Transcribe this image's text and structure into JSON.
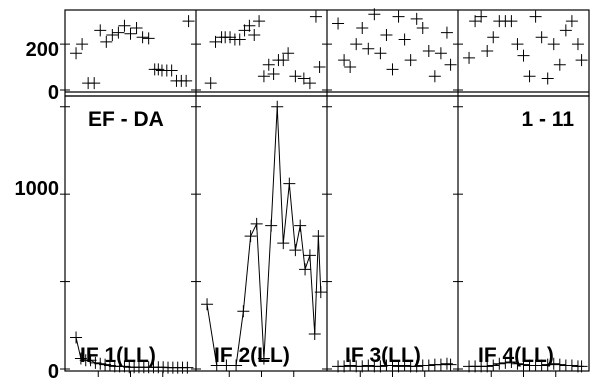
{
  "chart_data": {
    "type": "scatter",
    "labels": {
      "left_corner": "EF - DA",
      "right_corner": "1 - 11"
    },
    "top_strip": {
      "y_ticks": [
        {
          "value": 0,
          "label": "0"
        },
        {
          "value": 200,
          "label": "200"
        }
      ],
      "ylim": [
        0,
        340
      ],
      "panels": [
        {
          "id": "top-1",
          "points": [
            [
              0.05,
              160
            ],
            [
              0.1,
              200
            ],
            [
              0.15,
              30
            ],
            [
              0.2,
              30
            ],
            [
              0.25,
              260
            ],
            [
              0.3,
              210
            ],
            [
              0.35,
              240
            ],
            [
              0.4,
              250
            ],
            [
              0.45,
              280
            ],
            [
              0.5,
              245
            ],
            [
              0.55,
              270
            ],
            [
              0.6,
              230
            ],
            [
              0.65,
              225
            ],
            [
              0.7,
              90
            ],
            [
              0.73,
              90
            ],
            [
              0.76,
              85
            ],
            [
              0.8,
              85
            ],
            [
              0.84,
              85
            ],
            [
              0.88,
              40
            ],
            [
              0.92,
              40
            ],
            [
              0.96,
              40
            ],
            [
              0.98,
              300
            ]
          ]
        },
        {
          "id": "top-2",
          "points": [
            [
              0.08,
              30
            ],
            [
              0.12,
              210
            ],
            [
              0.17,
              230
            ],
            [
              0.2,
              230
            ],
            [
              0.24,
              230
            ],
            [
              0.28,
              220
            ],
            [
              0.32,
              220
            ],
            [
              0.36,
              260
            ],
            [
              0.4,
              280
            ],
            [
              0.44,
              240
            ],
            [
              0.48,
              300
            ],
            [
              0.52,
              60
            ],
            [
              0.56,
              110
            ],
            [
              0.6,
              70
            ],
            [
              0.64,
              130
            ],
            [
              0.68,
              130
            ],
            [
              0.72,
              160
            ],
            [
              0.78,
              60
            ],
            [
              0.85,
              50
            ],
            [
              0.9,
              30
            ],
            [
              0.95,
              320
            ],
            [
              0.98,
              100
            ]
          ]
        },
        {
          "id": "top-3",
          "points": [
            [
              0.05,
              290
            ],
            [
              0.1,
              130
            ],
            [
              0.15,
              100
            ],
            [
              0.2,
              200
            ],
            [
              0.25,
              270
            ],
            [
              0.3,
              180
            ],
            [
              0.35,
              330
            ],
            [
              0.4,
              160
            ],
            [
              0.45,
              240
            ],
            [
              0.5,
              90
            ],
            [
              0.55,
              320
            ],
            [
              0.6,
              220
            ],
            [
              0.65,
              130
            ],
            [
              0.7,
              310
            ],
            [
              0.75,
              270
            ],
            [
              0.8,
              170
            ],
            [
              0.85,
              60
            ],
            [
              0.9,
              160
            ],
            [
              0.95,
              250
            ],
            [
              0.98,
              110
            ]
          ]
        },
        {
          "id": "top-4",
          "points": [
            [
              0.05,
              140
            ],
            [
              0.1,
              300
            ],
            [
              0.15,
              320
            ],
            [
              0.2,
              170
            ],
            [
              0.25,
              230
            ],
            [
              0.3,
              300
            ],
            [
              0.35,
              300
            ],
            [
              0.4,
              300
            ],
            [
              0.45,
              200
            ],
            [
              0.5,
              150
            ],
            [
              0.55,
              60
            ],
            [
              0.6,
              320
            ],
            [
              0.65,
              230
            ],
            [
              0.7,
              50
            ],
            [
              0.75,
              200
            ],
            [
              0.8,
              110
            ],
            [
              0.85,
              260
            ],
            [
              0.9,
              300
            ],
            [
              0.95,
              200
            ],
            [
              0.98,
              130
            ]
          ]
        }
      ]
    },
    "main": {
      "y_ticks": [
        {
          "value": 0,
          "label": "0"
        },
        {
          "value": 1000,
          "label": "1000"
        }
      ],
      "ylim": [
        0,
        1550
      ],
      "panels": [
        {
          "id": "main-1",
          "label": "IF 1(LL)",
          "points": [
            [
              0.05,
              180
            ],
            [
              0.09,
              60
            ],
            [
              0.13,
              50
            ],
            [
              0.17,
              50
            ],
            [
              0.21,
              35
            ],
            [
              0.25,
              30
            ],
            [
              0.29,
              25
            ],
            [
              0.33,
              20
            ],
            [
              0.37,
              15
            ],
            [
              0.41,
              15
            ],
            [
              0.45,
              15
            ],
            [
              0.49,
              10
            ],
            [
              0.53,
              10
            ],
            [
              0.57,
              10
            ],
            [
              0.61,
              10
            ],
            [
              0.65,
              10
            ],
            [
              0.69,
              10
            ],
            [
              0.73,
              10
            ],
            [
              0.77,
              10
            ],
            [
              0.81,
              8
            ],
            [
              0.85,
              8
            ],
            [
              0.89,
              8
            ],
            [
              0.93,
              8
            ],
            [
              0.97,
              8
            ]
          ]
        },
        {
          "id": "main-2",
          "label": "IF 2(LL)",
          "points": [
            [
              0.05,
              370
            ],
            [
              0.13,
              20
            ],
            [
              0.21,
              20
            ],
            [
              0.29,
              20
            ],
            [
              0.35,
              330
            ],
            [
              0.41,
              760
            ],
            [
              0.46,
              830
            ],
            [
              0.52,
              60
            ],
            [
              0.58,
              820
            ],
            [
              0.63,
              1500
            ],
            [
              0.68,
              720
            ],
            [
              0.73,
              1060
            ],
            [
              0.78,
              680
            ],
            [
              0.82,
              820
            ],
            [
              0.86,
              570
            ],
            [
              0.9,
              650
            ],
            [
              0.94,
              200
            ],
            [
              0.97,
              760
            ],
            [
              0.99,
              440
            ]
          ]
        },
        {
          "id": "main-3",
          "label": "IF 3(LL)",
          "points": [
            [
              0.05,
              15
            ],
            [
              0.1,
              15
            ],
            [
              0.15,
              20
            ],
            [
              0.2,
              15
            ],
            [
              0.25,
              15
            ],
            [
              0.3,
              20
            ],
            [
              0.35,
              15
            ],
            [
              0.4,
              15
            ],
            [
              0.45,
              20
            ],
            [
              0.5,
              20
            ],
            [
              0.55,
              15
            ],
            [
              0.6,
              20
            ],
            [
              0.65,
              15
            ],
            [
              0.7,
              15
            ],
            [
              0.75,
              20
            ],
            [
              0.8,
              20
            ],
            [
              0.85,
              25
            ],
            [
              0.9,
              25
            ],
            [
              0.95,
              30
            ],
            [
              0.98,
              25
            ]
          ]
        },
        {
          "id": "main-4",
          "label": "IF 4(LL)",
          "points": [
            [
              0.05,
              15
            ],
            [
              0.1,
              15
            ],
            [
              0.15,
              15
            ],
            [
              0.2,
              15
            ],
            [
              0.25,
              20
            ],
            [
              0.3,
              30
            ],
            [
              0.35,
              35
            ],
            [
              0.4,
              40
            ],
            [
              0.45,
              30
            ],
            [
              0.5,
              25
            ],
            [
              0.55,
              20
            ],
            [
              0.6,
              20
            ],
            [
              0.65,
              20
            ],
            [
              0.7,
              25
            ],
            [
              0.75,
              30
            ],
            [
              0.8,
              25
            ],
            [
              0.85,
              20
            ],
            [
              0.9,
              20
            ],
            [
              0.95,
              15
            ],
            [
              0.98,
              15
            ]
          ]
        }
      ]
    }
  }
}
